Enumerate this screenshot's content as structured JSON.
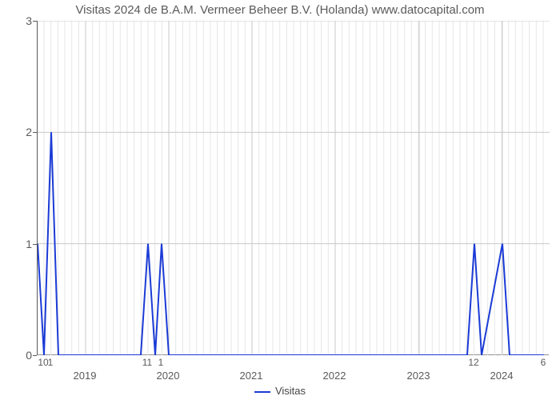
{
  "chart": {
    "type": "line",
    "title": "Visitas 2024 de B.A.M. Vermeer Beheer B.V. (Holanda) www.datocapital.com",
    "title_fontsize": 15,
    "title_color": "#5a5a5a",
    "background_color": "#ffffff",
    "series_color": "#1b3bd6",
    "line_width": 2,
    "grid_major_color": "#c8c8c8",
    "grid_minor_color": "#e7e7e7",
    "axis_color": "#5a5a5a",
    "y": {
      "min": 0,
      "max": 3,
      "ticks": [
        0,
        1,
        2,
        3
      ],
      "label_fontsize": 14,
      "label_color": "#5a5a5a"
    },
    "x": {
      "label_fontsize": 13,
      "label_color": "#5a5a5a",
      "minor_per_major": 12,
      "year_labels": [
        {
          "u": 60,
          "text": "2019"
        },
        {
          "u": 164,
          "text": "2020"
        },
        {
          "u": 268,
          "text": "2021"
        },
        {
          "u": 372,
          "text": "2022"
        },
        {
          "u": 477,
          "text": "2023"
        },
        {
          "u": 581,
          "text": "2024"
        }
      ],
      "minor_labels": [
        {
          "u": 8,
          "text": "10"
        },
        {
          "u": 17,
          "text": "1"
        },
        {
          "u": 138,
          "text": "11"
        },
        {
          "u": 155,
          "text": "1"
        },
        {
          "u": 546,
          "text": "12"
        },
        {
          "u": 633,
          "text": "6"
        }
      ]
    },
    "legend": {
      "label": "Visitas",
      "color": "#1b3bd6",
      "fontsize": 13
    },
    "data": [
      {
        "u": 0,
        "v": 1
      },
      {
        "u": 8,
        "v": 0
      },
      {
        "u": 17,
        "v": 2
      },
      {
        "u": 26,
        "v": 0
      },
      {
        "u": 129,
        "v": 0
      },
      {
        "u": 138,
        "v": 1
      },
      {
        "u": 147,
        "v": 0
      },
      {
        "u": 155,
        "v": 1
      },
      {
        "u": 164,
        "v": 0
      },
      {
        "u": 537,
        "v": 0
      },
      {
        "u": 546,
        "v": 1
      },
      {
        "u": 555,
        "v": 0
      },
      {
        "u": 581,
        "v": 1
      },
      {
        "u": 590,
        "v": 0
      },
      {
        "u": 633,
        "v": 0
      }
    ]
  }
}
